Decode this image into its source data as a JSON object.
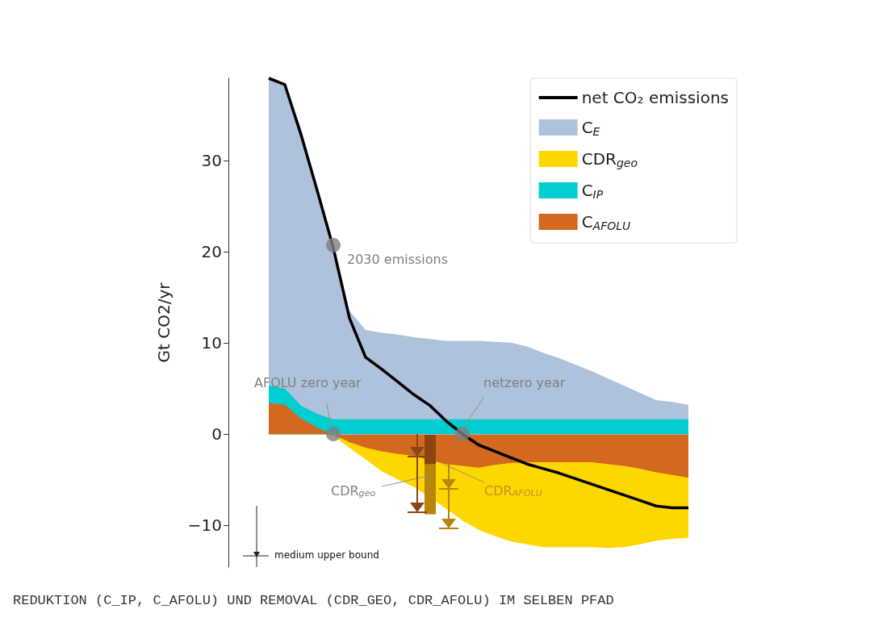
{
  "chart_data": {
    "type": "area",
    "ylabel": "Gt CO2/yr",
    "categories": [
      null,
      null,
      null,
      null,
      null,
      null,
      null,
      null,
      null,
      null,
      null,
      null,
      null,
      null,
      null,
      null,
      null,
      null,
      null,
      null,
      null,
      null,
      null,
      null,
      null,
      null,
      null
    ],
    "ylim": [
      -14.6,
      39
    ],
    "yticks": [
      {
        "value": -10,
        "label": "−10"
      },
      0,
      10,
      20,
      30
    ],
    "grid": false,
    "legend": "top right",
    "ref_lines": [
      {
        "axis": "y",
        "value": 0,
        "color": "#b0b0b0"
      }
    ],
    "series": [
      {
        "name": "net CO₂ emissions",
        "type": "line",
        "color": "#000000",
        "values": [
          39,
          38.3,
          32.8,
          26.7,
          20.4,
          12.7,
          8.4,
          7.1,
          5.7,
          4.3,
          3.1,
          1.4,
          0,
          -1.2,
          -1.9,
          -2.6,
          -3.3,
          -3.8,
          -4.3,
          -4.9,
          -5.5,
          -6.1,
          -6.7,
          -7.3,
          -7.9,
          -8.1,
          -8.1
        ]
      },
      {
        "name": "C$_{E}$",
        "color": "#aec2dc",
        "values": [
          39,
          38.3,
          33.5,
          27,
          21,
          13.5,
          11.4,
          11.1,
          10.9,
          10.6,
          10.4,
          10.2,
          10.2,
          10.2,
          10.1,
          10.0,
          9.6,
          8.9,
          8.3,
          7.6,
          6.9,
          6.1,
          5.3,
          4.5,
          3.7,
          3.5,
          3.2
        ]
      },
      {
        "name": "CDR$_{geo}$",
        "color": "#ffd700",
        "values": [
          null,
          null,
          null,
          0,
          -0.2,
          -1.5,
          -2.8,
          -4.1,
          -5.0,
          -5.8,
          null,
          -8.2,
          -9.5,
          -10.5,
          -11.2,
          -11.8,
          -12.1,
          -12.4,
          -12.4,
          -12.4,
          -12.4,
          -12.5,
          -12.4,
          -12.1,
          -11.7,
          -11.5,
          -11.4
        ]
      },
      {
        "name": "C$_{IP}$",
        "color": "#00ced1",
        "values": [
          5.3,
          5.0,
          3.1,
          2.2,
          1.6,
          1.6,
          1.6,
          1.6,
          1.6,
          1.6,
          1.6,
          1.6,
          1.6,
          1.6,
          1.6,
          1.6,
          1.6,
          1.6,
          1.6,
          1.6,
          1.6,
          1.6,
          1.6,
          1.6,
          1.6,
          1.6,
          1.6
        ]
      },
      {
        "name": "C$_{AFOLU}$",
        "color": "#d2691e",
        "values": [
          3.4,
          3.2,
          1.7,
          0.7,
          -0.1,
          -0.9,
          -1.5,
          -1.9,
          -2.2,
          -2.4,
          -2.9,
          -3.3,
          -3.5,
          -3.7,
          -3.4,
          -3.2,
          -3.1,
          -3.1,
          -3.1,
          -3.1,
          -3.1,
          -3.3,
          -3.5,
          -3.8,
          -4.2,
          -4.5,
          -4.8
        ]
      },
      {
        "type": "bar",
        "color": "#b8860b",
        "values": [
          null,
          null,
          null,
          null,
          null,
          null,
          null,
          null,
          null,
          null,
          -8.8,
          null,
          null,
          null,
          null,
          null,
          null,
          null,
          null,
          null,
          null,
          null,
          null,
          null,
          null,
          null,
          null
        ]
      },
      {
        "type": "bar",
        "color": "#8b4513",
        "values": [
          null,
          null,
          null,
          null,
          null,
          null,
          null,
          null,
          null,
          null,
          -3.3,
          null,
          null,
          null,
          null,
          null,
          null,
          null,
          null,
          null,
          null,
          null,
          null,
          null,
          null,
          null,
          null
        ]
      },
      {
        "type": "scatter",
        "color": "#808080",
        "values": [
          null,
          null,
          null,
          null,
          20.7,
          null,
          null,
          null,
          null,
          null,
          null,
          null,
          null,
          null,
          null,
          null,
          null,
          null,
          null,
          null,
          null,
          null,
          null,
          null,
          null,
          null,
          null
        ]
      },
      {
        "type": "scatter",
        "color": "#808080",
        "values": [
          null,
          null,
          null,
          null,
          0,
          null,
          null,
          null,
          null,
          null,
          null,
          null,
          0,
          null,
          null,
          null,
          null,
          null,
          null,
          null,
          null,
          null,
          null,
          null,
          null,
          null,
          null
        ]
      }
    ],
    "annotations": [
      "2030 emissions",
      "AFOLU zero year",
      "netzero year",
      "CDR$_{geo}$",
      "CDR$_{AFOLU}$",
      "medium upper bound",
      "REDUKTION (C_IP, C_AFOLU) UND REMOVAL (CDR_GEO, CDR_AFOLU) IM SELBEN PFAD"
    ]
  }
}
